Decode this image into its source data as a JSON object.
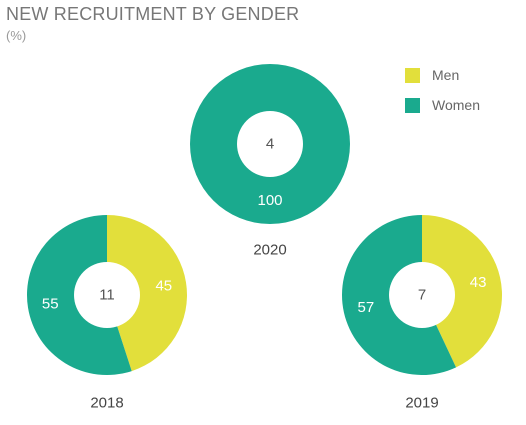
{
  "title": "NEW RECRUITMENT BY GENDER",
  "subtitle": "(%)",
  "colors": {
    "men": "#e2df3b",
    "women": "#1aaa8e"
  },
  "chart_data": {
    "type": "pie",
    "legend": {
      "placement": "top-right",
      "entries": [
        "Men",
        "Women"
      ]
    },
    "charts": [
      {
        "year": "2020",
        "center_value": "4",
        "series": [
          {
            "name": "Men",
            "value": 0
          },
          {
            "name": "Women",
            "value": 100
          }
        ]
      },
      {
        "year": "2018",
        "center_value": "11",
        "series": [
          {
            "name": "Men",
            "value": 45
          },
          {
            "name": "Women",
            "value": 55
          }
        ]
      },
      {
        "year": "2019",
        "center_value": "7",
        "series": [
          {
            "name": "Men",
            "value": 43
          },
          {
            "name": "Women",
            "value": 57
          }
        ]
      }
    ]
  }
}
